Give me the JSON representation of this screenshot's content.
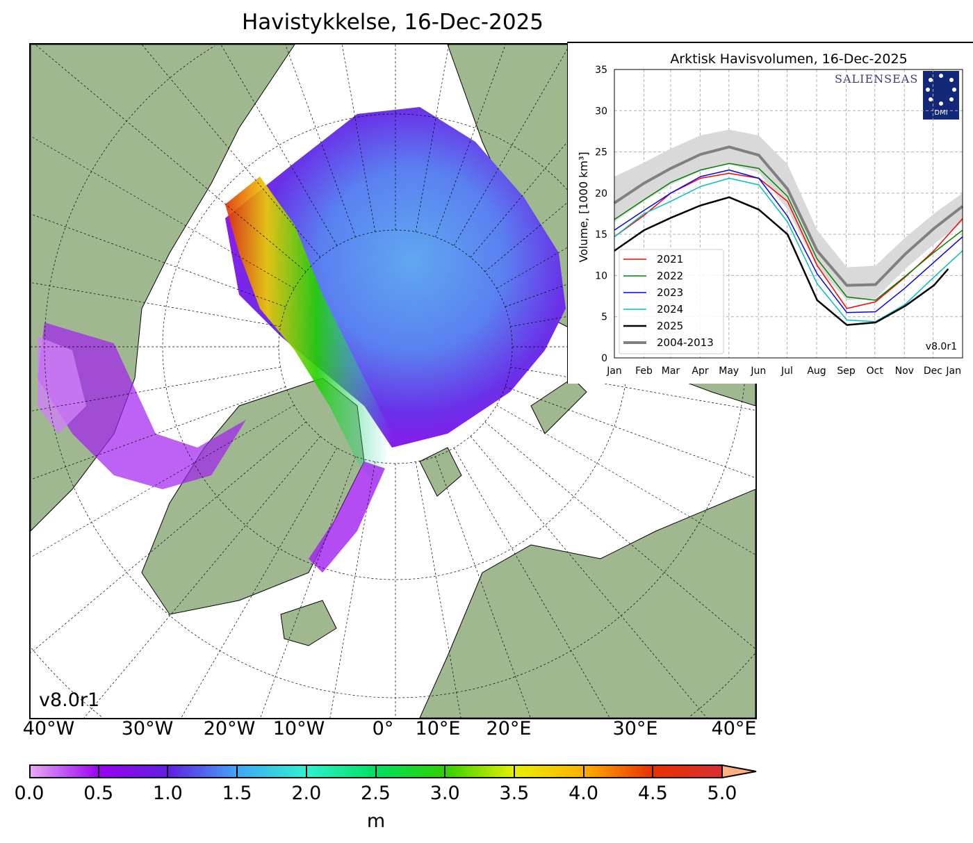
{
  "map": {
    "title": "Havistykkelse, 16-Dec-2025",
    "version": "v8.0r1",
    "longitude_labels": [
      "40°W",
      "30°W",
      "20°W",
      "10°W",
      "0°",
      "10°E",
      "20°E",
      "30°E",
      "40°E"
    ],
    "colorbar": {
      "ticks": [
        "0.0",
        "0.5",
        "1.0",
        "1.5",
        "2.0",
        "2.5",
        "3.0",
        "3.5",
        "4.0",
        "4.5",
        "5.0"
      ],
      "unit": "m",
      "colors": [
        "#e8a8f8",
        "#9a00f0",
        "#6020e0",
        "#40a8f8",
        "#30f0d0",
        "#00e060",
        "#30d000",
        "#e8f000",
        "#ffb000",
        "#e83000",
        "#d83030",
        "#ffb080"
      ],
      "extend": "max"
    },
    "land_color": "#a0b890",
    "ocean_color": "#ffffff"
  },
  "chart_data": {
    "type": "line",
    "title": "Arktisk Havisvolumen, 16-Dec-2025",
    "ylabel": "Volume, [1000 km³]",
    "ylim": [
      0,
      35
    ],
    "yticks": [
      "0",
      "5",
      "10",
      "15",
      "20",
      "25",
      "30",
      "35"
    ],
    "xticks": [
      "Jan",
      "Feb",
      "Mar",
      "Apr",
      "May",
      "Jun",
      "Jul",
      "Aug",
      "Sep",
      "Oct",
      "Nov",
      "Dec",
      "Jan"
    ],
    "grid": true,
    "legend_placement": "lower-left",
    "version": "v8.0r1",
    "logos": [
      "SALIENSEAS",
      "DMI"
    ],
    "x": [
      "01-01",
      "02-01",
      "03-01",
      "04-01",
      "05-01",
      "06-01",
      "07-01",
      "08-01",
      "09-01",
      "10-01",
      "11-01",
      "12-01",
      "12-31"
    ],
    "band": {
      "name": "2004-2013",
      "upper": [
        22,
        23.7,
        25.4,
        27,
        27.7,
        27,
        23.5,
        15.5,
        11,
        11.2,
        14.6,
        17.5,
        20
      ],
      "lower": [
        16.5,
        19,
        21,
        22.7,
        23.5,
        22.5,
        18,
        11,
        7,
        7.2,
        10.8,
        13.8,
        16.5
      ],
      "color": "#d9d9d9"
    },
    "series": [
      {
        "name": "2021",
        "color": "#ff0000",
        "values": [
          14.7,
          17.3,
          20,
          21.8,
          22.4,
          21.8,
          19,
          11.2,
          6,
          6.8,
          9.8,
          13,
          16.9
        ]
      },
      {
        "name": "2022",
        "color": "#008000",
        "values": [
          16.8,
          19.2,
          21.3,
          22.8,
          23.6,
          23,
          19.6,
          12,
          7.4,
          7,
          9.9,
          12.8,
          15.5
        ]
      },
      {
        "name": "2023",
        "color": "#0000ff",
        "values": [
          15.5,
          17.9,
          20,
          22,
          22.8,
          21.8,
          17.2,
          10.2,
          5.5,
          5.6,
          8.5,
          11.6,
          14.7
        ]
      },
      {
        "name": "2024",
        "color": "#00bfbf",
        "values": [
          14.7,
          17.5,
          19,
          20.8,
          21.8,
          21,
          16.5,
          9,
          4.6,
          4.4,
          6.5,
          9.8,
          13
        ]
      },
      {
        "name": "2025",
        "color": "#000000",
        "x": [
          "01-01",
          "02-01",
          "03-01",
          "04-01",
          "05-01",
          "06-01",
          "07-01",
          "08-01",
          "09-01",
          "10-01",
          "11-01",
          "12-01",
          "12-16"
        ],
        "values": [
          13,
          15.5,
          17,
          18.5,
          19.5,
          18,
          15,
          7,
          4,
          4.3,
          6.3,
          8.8,
          10.8
        ]
      },
      {
        "name": "2004-2013",
        "color": "#808080",
        "values": [
          18.8,
          21.2,
          23,
          24.7,
          25.6,
          24.6,
          20.5,
          13,
          8.8,
          8.9,
          12.6,
          15.7,
          18.4
        ]
      }
    ]
  }
}
